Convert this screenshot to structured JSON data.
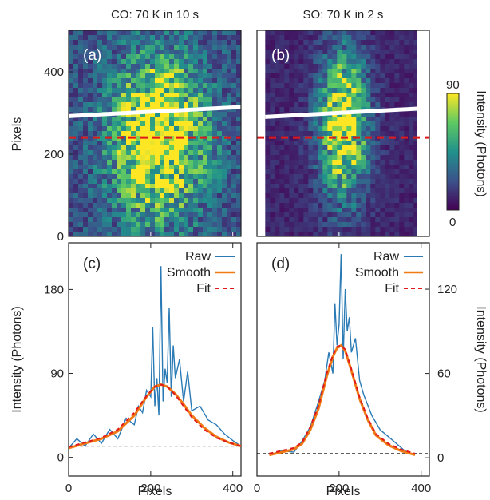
{
  "colors": {
    "raw": "#2a7ab5",
    "smooth": "#f07a16",
    "fit": "#e01a1a",
    "baseline": "#000000",
    "frame": "#222222",
    "colormap": [
      "#440154",
      "#3b528b",
      "#21918c",
      "#5ec962",
      "#fde725"
    ]
  },
  "titles": {
    "left": "CO: 70 K in 10 s",
    "right": "SO: 70 K in 2 s"
  },
  "colorbar": {
    "label": "Intensity (Photons)",
    "max_label": "90",
    "min_label": "0",
    "range": [
      0,
      90
    ]
  },
  "chart_data": [
    {
      "panel": "(a)",
      "type": "heatmap",
      "title": "CO: 70 K in 10 s",
      "ylabel": "Pixels",
      "xlim": [
        0,
        420
      ],
      "ylim": [
        0,
        500
      ],
      "yticks": [
        "0",
        "200",
        "400"
      ],
      "blob": {
        "center_x": 220,
        "center_y": 240,
        "sigma_x": 75,
        "sigma_y": 130,
        "peak": 85,
        "background": 22
      },
      "white_line": {
        "x": [
          0,
          420
        ],
        "y": [
          292,
          314
        ]
      },
      "red_dashed_y": 240
    },
    {
      "panel": "(b)",
      "type": "heatmap",
      "title": "SO: 70 K in 2 s",
      "xlim": [
        0,
        420
      ],
      "ylim": [
        0,
        500
      ],
      "data_x_range": [
        20,
        390
      ],
      "blob": {
        "center_x": 210,
        "center_y": 270,
        "sigma_x": 40,
        "sigma_y": 120,
        "peak": 85,
        "background": 10
      },
      "white_line": {
        "x": [
          20,
          390
        ],
        "y": [
          290,
          310
        ]
      },
      "red_dashed_y": 240
    },
    {
      "panel": "(c)",
      "type": "line",
      "xlabel": "Pixels",
      "ylabel": "Intensity (Photons)",
      "xlim": [
        0,
        420
      ],
      "ylim": [
        -20,
        230
      ],
      "xticks": [
        "0",
        "200",
        "400"
      ],
      "yticks": [
        "0",
        "90",
        "180"
      ],
      "legend": [
        "Raw",
        "Smooth",
        "Fit"
      ],
      "legend_position": "top-right",
      "baseline_y": 12,
      "series": [
        {
          "name": "Raw",
          "x": [
            0,
            20,
            40,
            60,
            80,
            100,
            120,
            140,
            160,
            170,
            180,
            190,
            200,
            205,
            210,
            215,
            220,
            225,
            230,
            235,
            240,
            245,
            250,
            255,
            260,
            270,
            280,
            290,
            300,
            320,
            340,
            360,
            380,
            400,
            420
          ],
          "y": [
            10,
            20,
            12,
            25,
            15,
            30,
            20,
            42,
            35,
            55,
            48,
            72,
            65,
            140,
            55,
            85,
            45,
            205,
            60,
            95,
            80,
            160,
            65,
            120,
            85,
            105,
            60,
            92,
            50,
            55,
            40,
            35,
            25,
            18,
            12
          ]
        },
        {
          "name": "Smooth",
          "x": [
            0,
            40,
            80,
            120,
            160,
            190,
            210,
            225,
            240,
            260,
            280,
            300,
            330,
            360,
            390,
            420
          ],
          "y": [
            10,
            15,
            20,
            28,
            45,
            65,
            76,
            78,
            76,
            68,
            57,
            45,
            32,
            22,
            16,
            12
          ]
        },
        {
          "name": "Fit",
          "x": [
            0,
            40,
            80,
            120,
            160,
            190,
            210,
            225,
            240,
            260,
            280,
            300,
            330,
            360,
            390,
            420
          ],
          "y": [
            11,
            16,
            21,
            30,
            48,
            66,
            76,
            78,
            76,
            67,
            55,
            43,
            30,
            21,
            16,
            12
          ]
        }
      ]
    },
    {
      "panel": "(d)",
      "type": "line",
      "xlabel": "Pixels",
      "ylabel": "Intensity (Photons)",
      "xlim": [
        0,
        420
      ],
      "ylim": [
        -13,
        153
      ],
      "xticks": [
        "0",
        "200",
        "400"
      ],
      "yticks": [
        "0",
        "60",
        "120"
      ],
      "legend": [
        "Raw",
        "Smooth",
        "Fit"
      ],
      "legend_position": "top-right",
      "baseline_y": 3,
      "series": [
        {
          "name": "Raw",
          "x": [
            30,
            60,
            90,
            110,
            130,
            150,
            165,
            175,
            185,
            190,
            195,
            200,
            205,
            210,
            215,
            220,
            225,
            230,
            240,
            250,
            260,
            280,
            300,
            320,
            340,
            360,
            385
          ],
          "y": [
            2,
            5,
            4,
            12,
            22,
            40,
            55,
            75,
            60,
            110,
            80,
            95,
            145,
            70,
            120,
            90,
            100,
            75,
            85,
            55,
            45,
            30,
            20,
            15,
            10,
            5,
            2
          ]
        },
        {
          "name": "Smooth",
          "x": [
            30,
            60,
            90,
            110,
            130,
            150,
            170,
            185,
            195,
            205,
            215,
            230,
            250,
            270,
            290,
            320,
            350,
            385
          ],
          "y": [
            2,
            4,
            6,
            10,
            20,
            35,
            58,
            72,
            78,
            80,
            76,
            62,
            42,
            27,
            16,
            9,
            5,
            2
          ]
        },
        {
          "name": "Fit",
          "x": [
            30,
            60,
            90,
            110,
            130,
            150,
            170,
            185,
            195,
            205,
            215,
            230,
            250,
            270,
            290,
            320,
            350,
            385
          ],
          "y": [
            3,
            5,
            7,
            11,
            22,
            37,
            60,
            73,
            79,
            80,
            77,
            63,
            43,
            28,
            17,
            10,
            6,
            3
          ]
        }
      ]
    }
  ]
}
